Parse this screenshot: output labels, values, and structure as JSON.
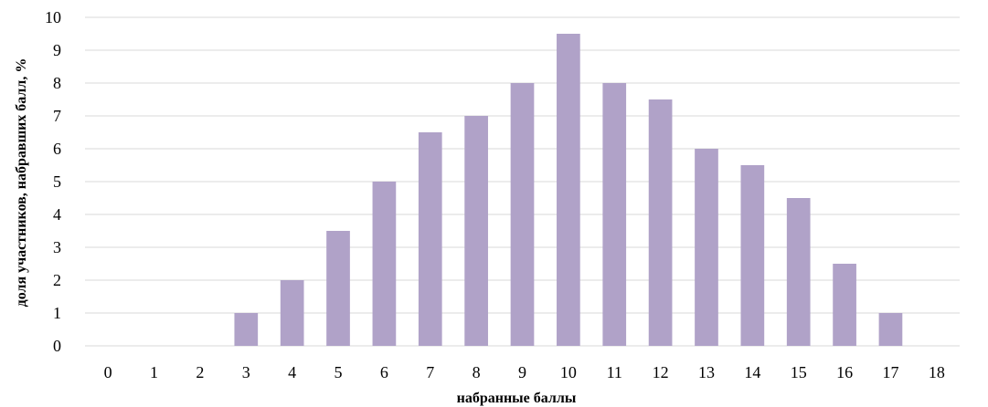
{
  "chart_data": {
    "type": "bar",
    "title": "",
    "xlabel": "набранные баллы",
    "ylabel": "доля участников, набравших балл, %",
    "categories": [
      "0",
      "1",
      "2",
      "3",
      "4",
      "5",
      "6",
      "7",
      "8",
      "9",
      "10",
      "11",
      "12",
      "13",
      "14",
      "15",
      "16",
      "17",
      "18"
    ],
    "values": [
      0,
      0,
      0,
      1,
      2,
      3.5,
      5,
      6.5,
      7,
      8,
      9.5,
      8,
      7.5,
      6,
      5.5,
      4.5,
      2.5,
      1,
      0
    ],
    "ylim": [
      0,
      10
    ],
    "yticks": [
      "0",
      "1",
      "2",
      "3",
      "4",
      "5",
      "6",
      "7",
      "8",
      "9",
      "10"
    ],
    "grid": true,
    "legend": "none",
    "bar_color": "#b0a2c8"
  }
}
